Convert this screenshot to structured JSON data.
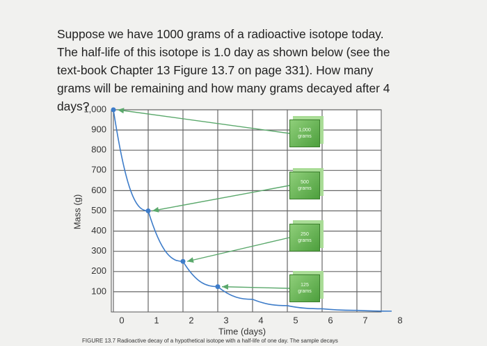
{
  "question": "Suppose we have 1000 grams of a radioactive isotope today. The half-life of this isotope is 1.0 day as shown below (see the text-book Chapter 13 Figure 13.7 on page 331). How many grams will be remaining and how many grams decayed after 4 days?",
  "chart_data": {
    "type": "line",
    "x_label": "Time (days)",
    "y_label": "Mass (g)",
    "caption": "FIGURE 13.7 Radioactive decay of a hypothetical isotope with a half-life of one day. The sample decays",
    "x": [
      0,
      1,
      2,
      3,
      4,
      5,
      6,
      7,
      8
    ],
    "series": [
      {
        "color": "#3d7cc9",
        "values": [
          1000,
          500,
          250,
          125,
          62.5,
          31.25,
          15.6,
          7.8,
          3.9
        ]
      }
    ],
    "xlim": [
      0,
      7.7
    ],
    "ylim": [
      0,
      1000
    ],
    "xticks": [
      0,
      1,
      2,
      3,
      4,
      5,
      6,
      7,
      8
    ],
    "yticks": [
      100,
      200,
      300,
      400,
      500,
      600,
      700,
      800,
      900,
      {
        "value": 1000,
        "label": "1,000"
      }
    ],
    "grid": true,
    "annotations": [
      {
        "text": "1,000 grams",
        "value": 1000
      },
      {
        "text": "500 grams",
        "value": 500
      },
      {
        "text": "250 grams",
        "value": 250
      },
      {
        "text": "125 grams",
        "value": 125
      }
    ]
  }
}
